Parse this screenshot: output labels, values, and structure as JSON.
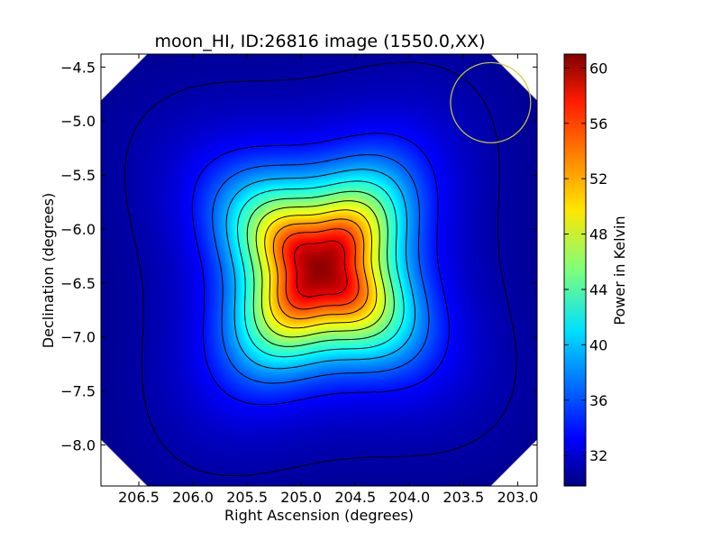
{
  "chart_data": {
    "type": "heatmap",
    "title": "moon_HI, ID:26816 image (1550.0,XX)",
    "xlabel": "Right Ascension (degrees)",
    "ylabel": "Declination (degrees)",
    "colorbar_label": "Power in Kelvin",
    "xlim": [
      206.85,
      202.82
    ],
    "ylim": [
      -8.38,
      -4.38
    ],
    "x_ticks": [
      206.5,
      206.0,
      205.5,
      205.0,
      204.5,
      204.0,
      203.5,
      203.0
    ],
    "x_tick_labels": [
      "206.5",
      "206.0",
      "205.5",
      "205.0",
      "204.5",
      "204.0",
      "203.5",
      "203.0"
    ],
    "y_ticks": [
      -4.5,
      -5.0,
      -5.5,
      -6.0,
      -6.5,
      -7.0,
      -7.5,
      -8.0
    ],
    "y_tick_labels": [
      "−4.5",
      "−5.0",
      "−5.5",
      "−6.0",
      "−6.5",
      "−7.0",
      "−7.5",
      "−8.0"
    ],
    "colorbar_range": [
      29.8,
      61.0
    ],
    "colorbar_ticks": [
      32,
      36,
      40,
      44,
      48,
      52,
      56,
      60
    ],
    "colorbar_tick_labels": [
      "32",
      "36",
      "40",
      "44",
      "48",
      "52",
      "56",
      "60"
    ],
    "colormap": "jet",
    "peak": {
      "ra": 204.82,
      "dec": -6.37,
      "value": 60.5
    },
    "background_value": 29.8,
    "contour_levels": [
      31.0,
      34.0,
      36.6,
      39.2,
      41.8,
      44.4,
      47.0,
      49.6,
      52.2,
      54.8,
      57.6
    ],
    "beam_circle": {
      "ra": 203.25,
      "dec": -4.83,
      "radius_deg": 0.37,
      "color": "#cccc33"
    }
  }
}
